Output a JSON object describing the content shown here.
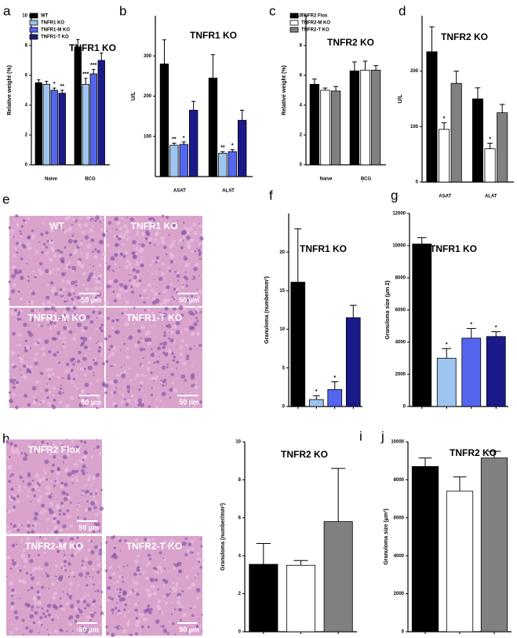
{
  "chart_data": [
    {
      "type": "bar",
      "panel": "a",
      "title": "TNFR1 KO",
      "y_label": "Relative weight (%)",
      "categories": [
        "Naive",
        "BCG"
      ],
      "series": [
        {
          "name": "WT",
          "color": "#000000",
          "values": [
            5.5,
            7.9
          ],
          "errors": [
            0.2,
            0.5
          ],
          "annotations": [
            null,
            null
          ]
        },
        {
          "name": "TNFR1 KO",
          "color": "#9ec5f0",
          "values": [
            5.4,
            5.4
          ],
          "errors": [
            0.2,
            0.4
          ],
          "annotations": [
            null,
            "***"
          ]
        },
        {
          "name": "TNFR1-M KO",
          "color": "#5566ee",
          "values": [
            5.0,
            6.1
          ],
          "errors": [
            0.15,
            0.3
          ],
          "annotations": [
            "*",
            "***"
          ]
        },
        {
          "name": "TNFR1-T KO",
          "color": "#1a1a8a",
          "values": [
            4.8,
            7.0
          ],
          "errors": [
            0.2,
            0.5
          ],
          "annotations": [
            "**",
            null
          ]
        }
      ],
      "ylim": [
        0,
        10
      ],
      "yticks": [
        0,
        2,
        4,
        6,
        8,
        10
      ],
      "legend": "top-left"
    },
    {
      "type": "bar",
      "panel": "b",
      "title": "TNFR1 KO",
      "y_label": "U/L",
      "categories": [
        "ASAT",
        "ALAT"
      ],
      "series": [
        {
          "name": "WT",
          "color": "#000000",
          "values": [
            280,
            245
          ],
          "errors": [
            60,
            58
          ],
          "annotations": [
            null,
            null
          ]
        },
        {
          "name": "TNFR1 KO",
          "color": "#9ec5f0",
          "values": [
            78,
            58
          ],
          "errors": [
            5,
            4
          ],
          "annotations": [
            "**",
            "**"
          ]
        },
        {
          "name": "TNFR1-M KO",
          "color": "#5566ee",
          "values": [
            80,
            62
          ],
          "errors": [
            6,
            5
          ],
          "annotations": [
            "*",
            "*"
          ]
        },
        {
          "name": "TNFR1-T KO",
          "color": "#1a1a8a",
          "values": [
            165,
            140
          ],
          "errors": [
            22,
            25
          ],
          "annotations": [
            null,
            null
          ]
        }
      ],
      "ylim": [
        0,
        400
      ],
      "yticks": [
        100,
        200,
        300
      ]
    },
    {
      "type": "bar",
      "panel": "c",
      "title": "TNFR2 KO",
      "y_label": "Relative weight (%)",
      "categories": [
        "Naive",
        "BCG"
      ],
      "series": [
        {
          "name": "TNFR2 Flox",
          "color": "#000000",
          "values": [
            5.4,
            6.3
          ],
          "errors": [
            0.35,
            0.6
          ],
          "annotations": [
            null,
            null
          ]
        },
        {
          "name": "TNFR2-M KO",
          "color": "#ffffff",
          "values": [
            5.0,
            6.35
          ],
          "errors": [
            0.15,
            0.6
          ],
          "annotations": [
            null,
            null
          ]
        },
        {
          "name": "TNFR2-T KO",
          "color": "#808080",
          "values": [
            4.95,
            6.35
          ],
          "errors": [
            0.3,
            0.3
          ],
          "annotations": [
            null,
            null
          ]
        }
      ],
      "ylim": [
        0,
        10
      ],
      "yticks": [
        0,
        2,
        4,
        6,
        8,
        10
      ],
      "legend": "top-left"
    },
    {
      "type": "bar",
      "panel": "d",
      "title": "TNFR2 KO",
      "y_label": "U/L",
      "categories": [
        "ASAT",
        "ALAT"
      ],
      "series": [
        {
          "name": "TNFR2 Flox",
          "color": "#000000",
          "values": [
            235,
            150
          ],
          "errors": [
            45,
            20
          ],
          "annotations": [
            null,
            null
          ]
        },
        {
          "name": "TNFR2-M KO",
          "color": "#ffffff",
          "values": [
            95,
            60
          ],
          "errors": [
            12,
            10
          ],
          "annotations": [
            "*",
            "*"
          ]
        },
        {
          "name": "TNFR2-T KO",
          "color": "#808080",
          "values": [
            178,
            125
          ],
          "errors": [
            22,
            15
          ],
          "annotations": [
            null,
            null
          ]
        }
      ],
      "ylim": [
        0,
        300
      ],
      "yticks": [
        0,
        100,
        200
      ]
    },
    {
      "type": "bar",
      "panel": "f",
      "title": "TNFR1 KO",
      "y_label": "Granuloma (number/mm²)",
      "categories": [
        null,
        null,
        null,
        null
      ],
      "values": [
        16.1,
        0.9,
        2.2,
        11.5
      ],
      "errors": [
        6.9,
        0.5,
        1.0,
        1.6
      ],
      "annotations": [
        null,
        "*",
        "*",
        null
      ],
      "colors": [
        "#000000",
        "#9ec5f0",
        "#5566ee",
        "#1a1a8a"
      ],
      "ylim": [
        0,
        25
      ],
      "yticks": [
        0,
        5,
        10,
        15,
        20
      ]
    },
    {
      "type": "bar",
      "panel": "g",
      "title": "TNFR1 KO",
      "y_label": "Granuloma size (μm 2)",
      "categories": [
        null,
        null,
        null,
        null
      ],
      "values": [
        10100,
        3000,
        4250,
        4350
      ],
      "errors": [
        400,
        600,
        600,
        300
      ],
      "annotations": [
        null,
        "*",
        "*",
        "*"
      ],
      "colors": [
        "#000000",
        "#9ec5f0",
        "#5566ee",
        "#1a1a8a"
      ],
      "ylim": [
        0,
        12000
      ],
      "yticks": [
        0,
        2000,
        4000,
        6000,
        8000,
        10000,
        12000
      ]
    },
    {
      "type": "bar",
      "panel": "i",
      "title": "TNFR2 KO",
      "y_label": "Granuloma (number/mm²)",
      "categories": [
        null,
        null,
        null
      ],
      "values": [
        3.55,
        3.5,
        5.8
      ],
      "errors": [
        1.1,
        0.25,
        2.8
      ],
      "annotations": [
        null,
        null,
        null
      ],
      "colors": [
        "#000000",
        "#ffffff",
        "#808080"
      ],
      "ylim": [
        0,
        10
      ],
      "yticks": [
        0,
        2,
        4,
        6,
        8,
        10
      ]
    },
    {
      "type": "bar",
      "panel": "j",
      "title": "TNFR2 KO",
      "y_label": "Granuloma size (μm²)",
      "categories": [
        null,
        null,
        null
      ],
      "values": [
        8700,
        7400,
        9150
      ],
      "errors": [
        450,
        750,
        350
      ],
      "annotations": [
        null,
        null,
        null
      ],
      "colors": [
        "#000000",
        "#ffffff",
        "#808080"
      ],
      "ylim": [
        0,
        10000
      ],
      "yticks": [
        0,
        2000,
        4000,
        6000,
        8000,
        10000
      ]
    }
  ],
  "micrographs": [
    {
      "panel": "e",
      "images": [
        {
          "label": "WT",
          "scale": "50 µm"
        },
        {
          "label": "TNFR1 KO",
          "scale": "50 µm"
        },
        {
          "label": "TNFR1-M KO",
          "scale": "50 µm"
        },
        {
          "label": "TNFR1-T KO",
          "scale": "50 µm"
        }
      ]
    },
    {
      "panel": "h",
      "images": [
        {
          "label": "TNFR2 Flox",
          "scale": "50 µm"
        },
        {
          "label": "TNFR2-M KO",
          "scale": "50 µm"
        },
        {
          "label": "TNFR2-T KO",
          "scale": "50 µm"
        }
      ]
    }
  ]
}
